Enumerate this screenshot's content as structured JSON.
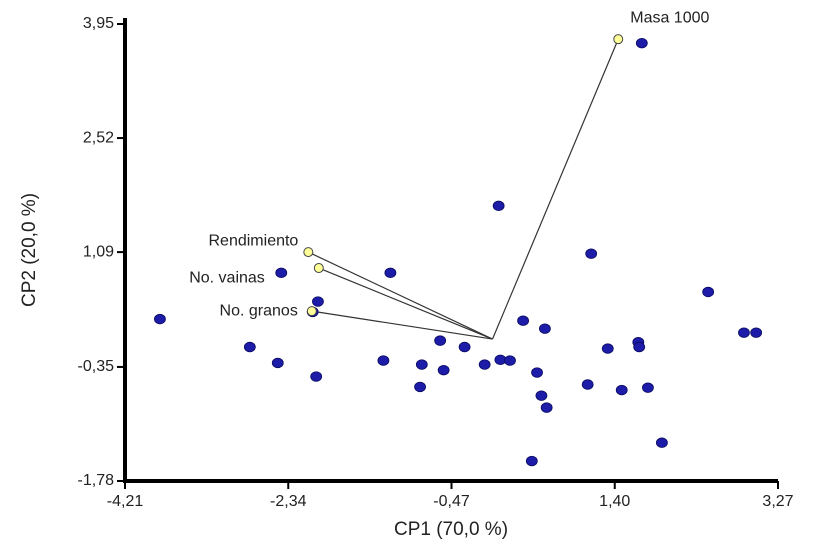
{
  "chart_data": {
    "type": "biplot",
    "x_label": "CP1 (70,0 %)",
    "y_label": "CP2 (20,0 %)",
    "xlim": [
      -4.21,
      3.27
    ],
    "ylim": [
      -1.78,
      3.95
    ],
    "xticks": [
      {
        "value": -4.21,
        "label": "-4,21"
      },
      {
        "value": -2.34,
        "label": "-2,34"
      },
      {
        "value": -0.47,
        "label": "-0,47"
      },
      {
        "value": 1.4,
        "label": "1,40"
      },
      {
        "value": 3.27,
        "label": "3,27"
      }
    ],
    "yticks": [
      {
        "value": -1.78,
        "label": "-1,78"
      },
      {
        "value": -0.35,
        "label": "-0,35"
      },
      {
        "value": 1.09,
        "label": "1,09"
      },
      {
        "value": 2.52,
        "label": "2,52"
      },
      {
        "value": 3.95,
        "label": "3,95"
      }
    ],
    "points": {
      "color": "#1c1ca8",
      "x": [
        1.71,
        0.07,
        1.13,
        2.47,
        -1.17,
        -2.42,
        -3.81,
        -2.0,
        -2.06,
        -2.78,
        -2.46,
        -2.02,
        -1.25,
        -0.83,
        -0.81,
        -0.6,
        -0.56,
        -0.32,
        -0.09,
        0.09,
        0.2,
        0.35,
        0.6,
        0.51,
        0.56,
        0.62,
        0.45,
        1.09,
        1.32,
        1.67,
        1.68,
        1.48,
        1.78,
        1.94,
        2.88,
        3.02
      ],
      "y": [
        3.71,
        1.67,
        1.07,
        0.59,
        0.83,
        0.83,
        0.25,
        0.47,
        0.34,
        -0.1,
        -0.3,
        -0.47,
        -0.27,
        -0.6,
        -0.32,
        -0.02,
        -0.39,
        -0.1,
        -0.32,
        -0.26,
        -0.27,
        0.23,
        0.13,
        -0.42,
        -0.71,
        -0.86,
        -1.53,
        -0.57,
        -0.12,
        -0.04,
        -0.1,
        -0.64,
        -0.61,
        -1.3,
        0.08,
        0.08
      ]
    },
    "vectors": {
      "color": "#ffff99",
      "items": [
        {
          "name": "Masa 1000",
          "x": 1.44,
          "y": 3.76
        },
        {
          "name": "Rendimiento",
          "x": -2.11,
          "y": 1.09
        },
        {
          "name": "No. vainas",
          "x": -1.99,
          "y": 0.89
        },
        {
          "name": "No. granos",
          "x": -2.07,
          "y": 0.35
        }
      ]
    }
  }
}
